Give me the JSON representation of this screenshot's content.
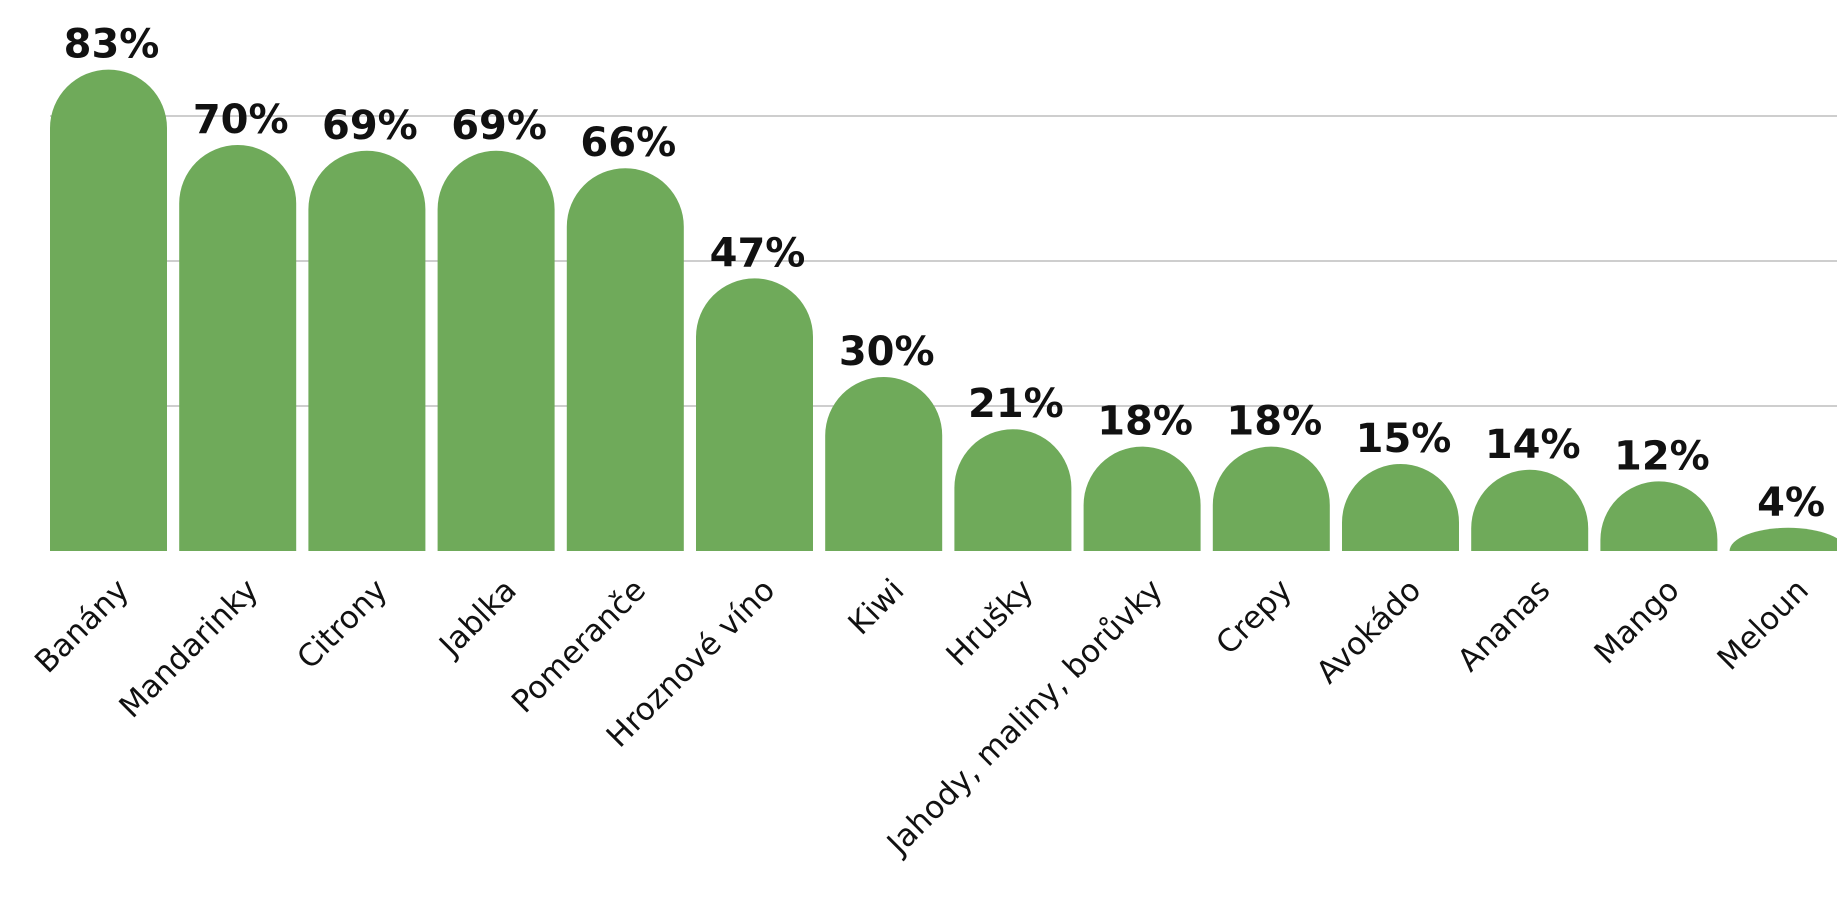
{
  "chart_data": {
    "type": "bar",
    "categories": [
      "Banány",
      "Mandarinky",
      "Citrony",
      "Jablka",
      "Pomeranče",
      "Hroznové víno",
      "Kiwi",
      "Hrušky",
      "Jahody, maliny, borůvky",
      "Crepy",
      "Avokádo",
      "Ananas",
      "Mango",
      "Meloun"
    ],
    "values": [
      83,
      70,
      69,
      69,
      66,
      47,
      30,
      21,
      18,
      18,
      15,
      14,
      12,
      4
    ],
    "value_labels": [
      "83%",
      "70%",
      "69%",
      "69%",
      "66%",
      "47%",
      "30%",
      "21%",
      "18%",
      "18%",
      "15%",
      "14%",
      "12%",
      "4%"
    ],
    "color": "#6faa5a",
    "ylim": [
      0,
      95
    ],
    "yticks": [
      25,
      50,
      75
    ],
    "grid": true
  }
}
